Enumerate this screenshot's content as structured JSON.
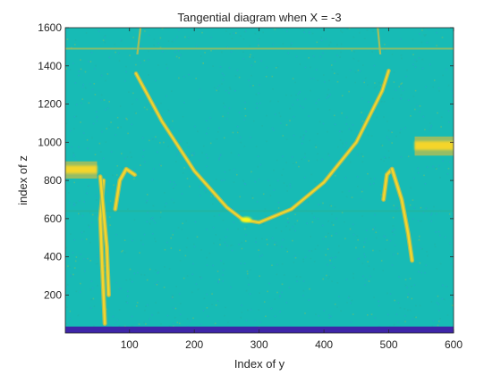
{
  "chart_data": {
    "type": "heatmap",
    "title": "Tangential diagram when X = -3",
    "xlabel": "Index of y",
    "ylabel": "index of z",
    "xlim": [
      1,
      600
    ],
    "ylim": [
      1,
      1600
    ],
    "xticks": [
      100,
      200,
      300,
      400,
      500,
      600
    ],
    "yticks": [
      200,
      400,
      600,
      800,
      1000,
      1200,
      1400,
      1600
    ],
    "grid": false,
    "colormap": [
      "#3e26a8",
      "#2d8bda",
      "#17bbb5",
      "#23b59f",
      "#a4be5c",
      "#f4d52b",
      "#f9fb15"
    ],
    "background_level": 0.42,
    "features": {
      "horizontal_lines": [
        {
          "z": 1490,
          "level": 0.62
        },
        {
          "z": 640,
          "level": 0.55
        }
      ],
      "bottom_band": {
        "z_from": 1,
        "z_to": 35,
        "level": 0.0
      },
      "parabola": {
        "vertex_y": 300,
        "vertex_z": 580,
        "points": [
          {
            "y": 110,
            "z": 1360
          },
          {
            "y": 150,
            "z": 1110
          },
          {
            "y": 200,
            "z": 850
          },
          {
            "y": 250,
            "z": 660
          },
          {
            "y": 275,
            "z": 595
          },
          {
            "y": 300,
            "z": 580
          },
          {
            "y": 350,
            "z": 650
          },
          {
            "y": 400,
            "z": 790
          },
          {
            "y": 450,
            "z": 1000
          },
          {
            "y": 490,
            "z": 1270
          },
          {
            "y": 500,
            "z": 1375
          }
        ]
      },
      "arc_tops": [
        {
          "y": [
            112,
            117
          ],
          "z": [
            1460,
            1600
          ]
        },
        {
          "y": [
            487,
            483
          ],
          "z": [
            1460,
            1600
          ]
        }
      ],
      "side_bands": [
        {
          "y_from": 1,
          "y_to": 50,
          "z_from": 810,
          "z_to": 900
        },
        {
          "y_from": 540,
          "y_to": 600,
          "z_from": 930,
          "z_to": 1030
        }
      ],
      "left_lobes": [
        {
          "path": [
            [
              60,
              800
            ],
            [
              55,
              600
            ],
            [
              58,
              350
            ],
            [
              62,
              50
            ]
          ]
        },
        {
          "path": [
            [
              55,
              820
            ],
            [
              65,
              450
            ],
            [
              68,
              200
            ]
          ]
        },
        {
          "path": [
            [
              78,
              650
            ],
            [
              85,
              800
            ],
            [
              95,
              860
            ],
            [
              108,
              830
            ]
          ]
        }
      ],
      "right_lobes": [
        {
          "path": [
            [
              492,
              700
            ],
            [
              497,
              830
            ],
            [
              505,
              860
            ]
          ]
        },
        {
          "path": [
            [
              505,
              860
            ],
            [
              520,
              700
            ],
            [
              530,
              520
            ],
            [
              536,
              380
            ]
          ]
        }
      ]
    }
  }
}
